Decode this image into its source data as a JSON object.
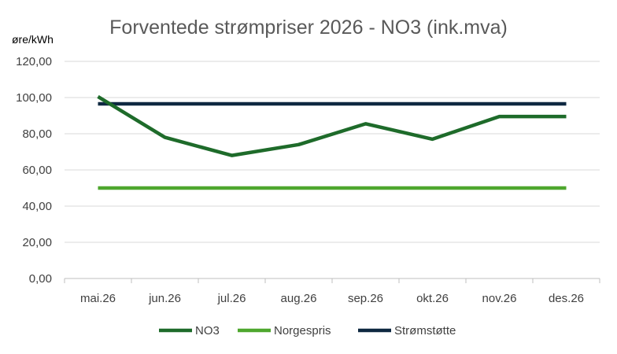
{
  "chart_data": {
    "type": "line",
    "title": "Forventede strømpriser 2026 - NO3 (ink.mva)",
    "ylabel": "øre/kWh",
    "xlabel": "",
    "categories": [
      "mai.26",
      "jun.26",
      "jul.26",
      "aug.26",
      "sep.26",
      "okt.26",
      "nov.26",
      "des.26"
    ],
    "ylim": [
      0,
      120
    ],
    "yticks": [
      "0,00",
      "20,00",
      "40,00",
      "60,00",
      "80,00",
      "100,00",
      "120,00"
    ],
    "ytick_values": [
      0,
      20,
      40,
      60,
      80,
      100,
      120
    ],
    "grid": true,
    "legend_position": "bottom",
    "series": [
      {
        "name": "NO3",
        "color": "#1e6b2a",
        "values": [
          100.5,
          78.0,
          68.0,
          74.0,
          85.5,
          77.0,
          89.5,
          89.5
        ]
      },
      {
        "name": "Norgespris",
        "color": "#4ea72e",
        "values": [
          50.0,
          50.0,
          50.0,
          50.0,
          50.0,
          50.0,
          50.0,
          50.0
        ]
      },
      {
        "name": "Strømstøtte",
        "color": "#0e2841",
        "values": [
          96.5,
          96.5,
          96.5,
          96.5,
          96.5,
          96.5,
          96.5,
          96.5
        ]
      }
    ]
  }
}
